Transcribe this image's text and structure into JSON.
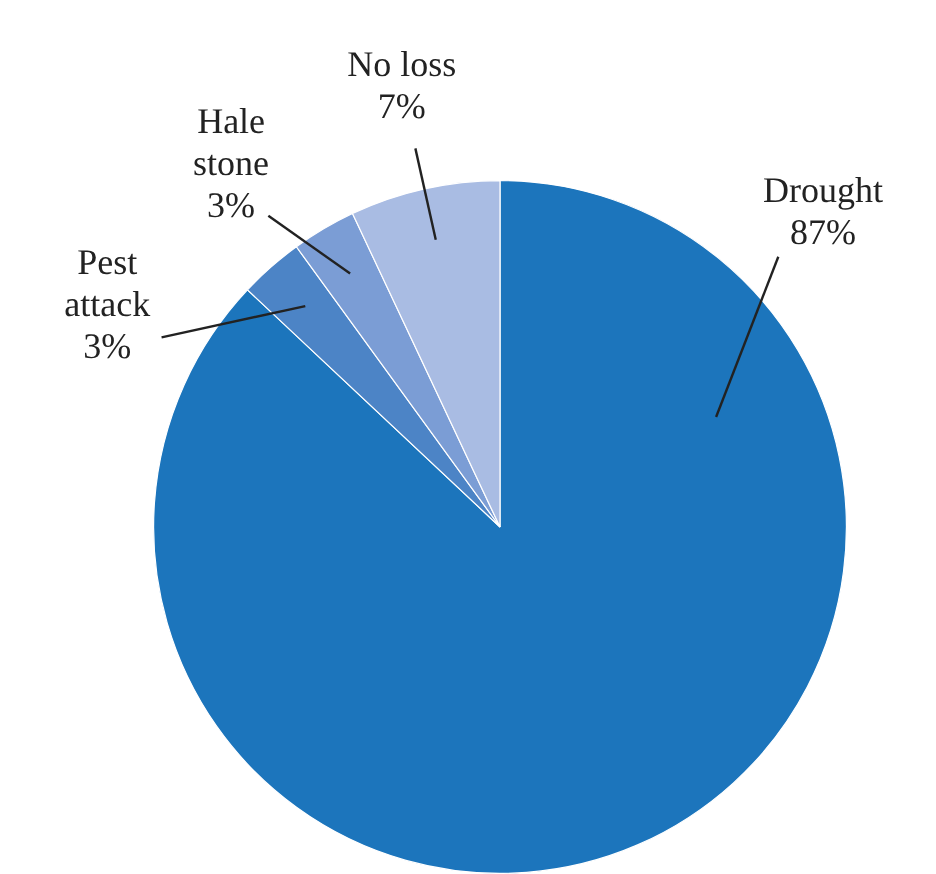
{
  "chart_data": {
    "type": "pie",
    "categories": [
      "Drought",
      "Pest attack",
      "Hale stone",
      "No loss"
    ],
    "values": [
      87,
      3,
      3,
      7
    ],
    "colors": [
      "#1c75bc",
      "#4c84c6",
      "#7b9dd5",
      "#a9bce3"
    ],
    "value_labels": [
      "87%",
      "3%",
      "3%",
      "7%"
    ],
    "legend": false
  }
}
